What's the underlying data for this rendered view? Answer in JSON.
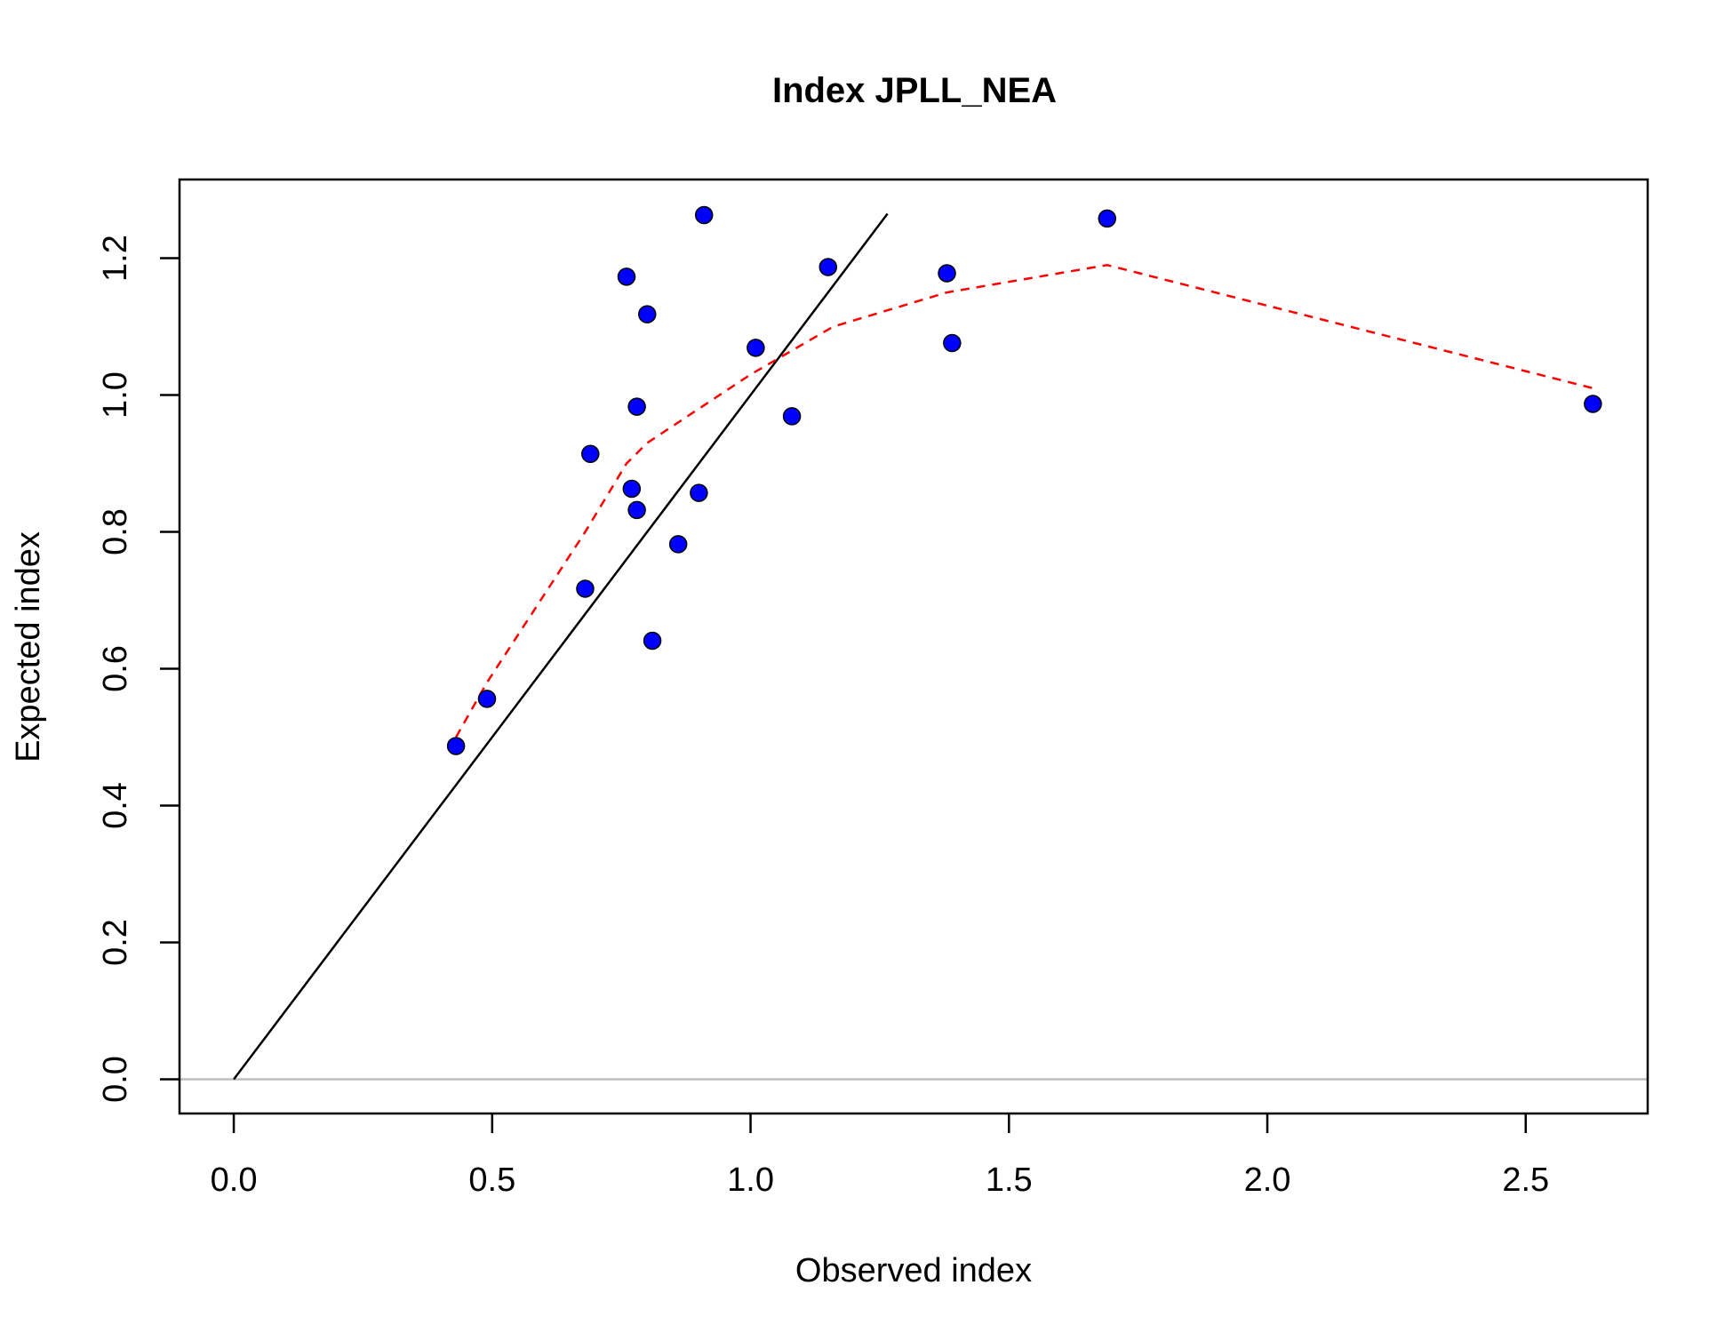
{
  "chart_data": {
    "type": "scatter",
    "title": "Index JPLL_NEA",
    "xlabel": "Observed index",
    "ylabel": "Expected index",
    "xlim": [
      -0.105,
      2.736
    ],
    "ylim": [
      -0.05,
      1.315
    ],
    "x_ticks": [
      "0.0",
      "0.5",
      "1.0",
      "1.5",
      "2.0",
      "2.5"
    ],
    "y_ticks": [
      "0.0",
      "0.2",
      "0.4",
      "0.6",
      "0.8",
      "1.0",
      "1.2"
    ],
    "grid": false,
    "points": {
      "color": "#0000ff",
      "x": [
        0.43,
        0.49,
        0.68,
        0.69,
        0.76,
        0.77,
        0.78,
        0.78,
        0.8,
        0.81,
        0.86,
        0.9,
        0.91,
        1.01,
        1.08,
        1.15,
        1.38,
        1.39,
        1.69,
        2.63
      ],
      "y": [
        0.487,
        0.556,
        0.717,
        0.914,
        1.173,
        0.863,
        0.983,
        0.832,
        1.118,
        0.641,
        0.782,
        0.857,
        1.263,
        1.069,
        0.969,
        1.187,
        1.178,
        1.076,
        1.258,
        0.987
      ]
    },
    "identity_line": {
      "color": "#000000",
      "x": [
        0,
        1.265
      ],
      "y": [
        0,
        1.265
      ]
    },
    "smoother": {
      "color": "#ff0000",
      "style": "dashed",
      "x": [
        0.43,
        0.49,
        0.68,
        0.76,
        0.8,
        0.9,
        1.0,
        1.16,
        1.38,
        1.69,
        2.63
      ],
      "y": [
        0.5,
        0.58,
        0.8,
        0.9,
        0.93,
        0.98,
        1.03,
        1.1,
        1.15,
        1.19,
        1.01
      ]
    },
    "zero_line": {
      "color": "#bebebe",
      "y": 0
    }
  }
}
